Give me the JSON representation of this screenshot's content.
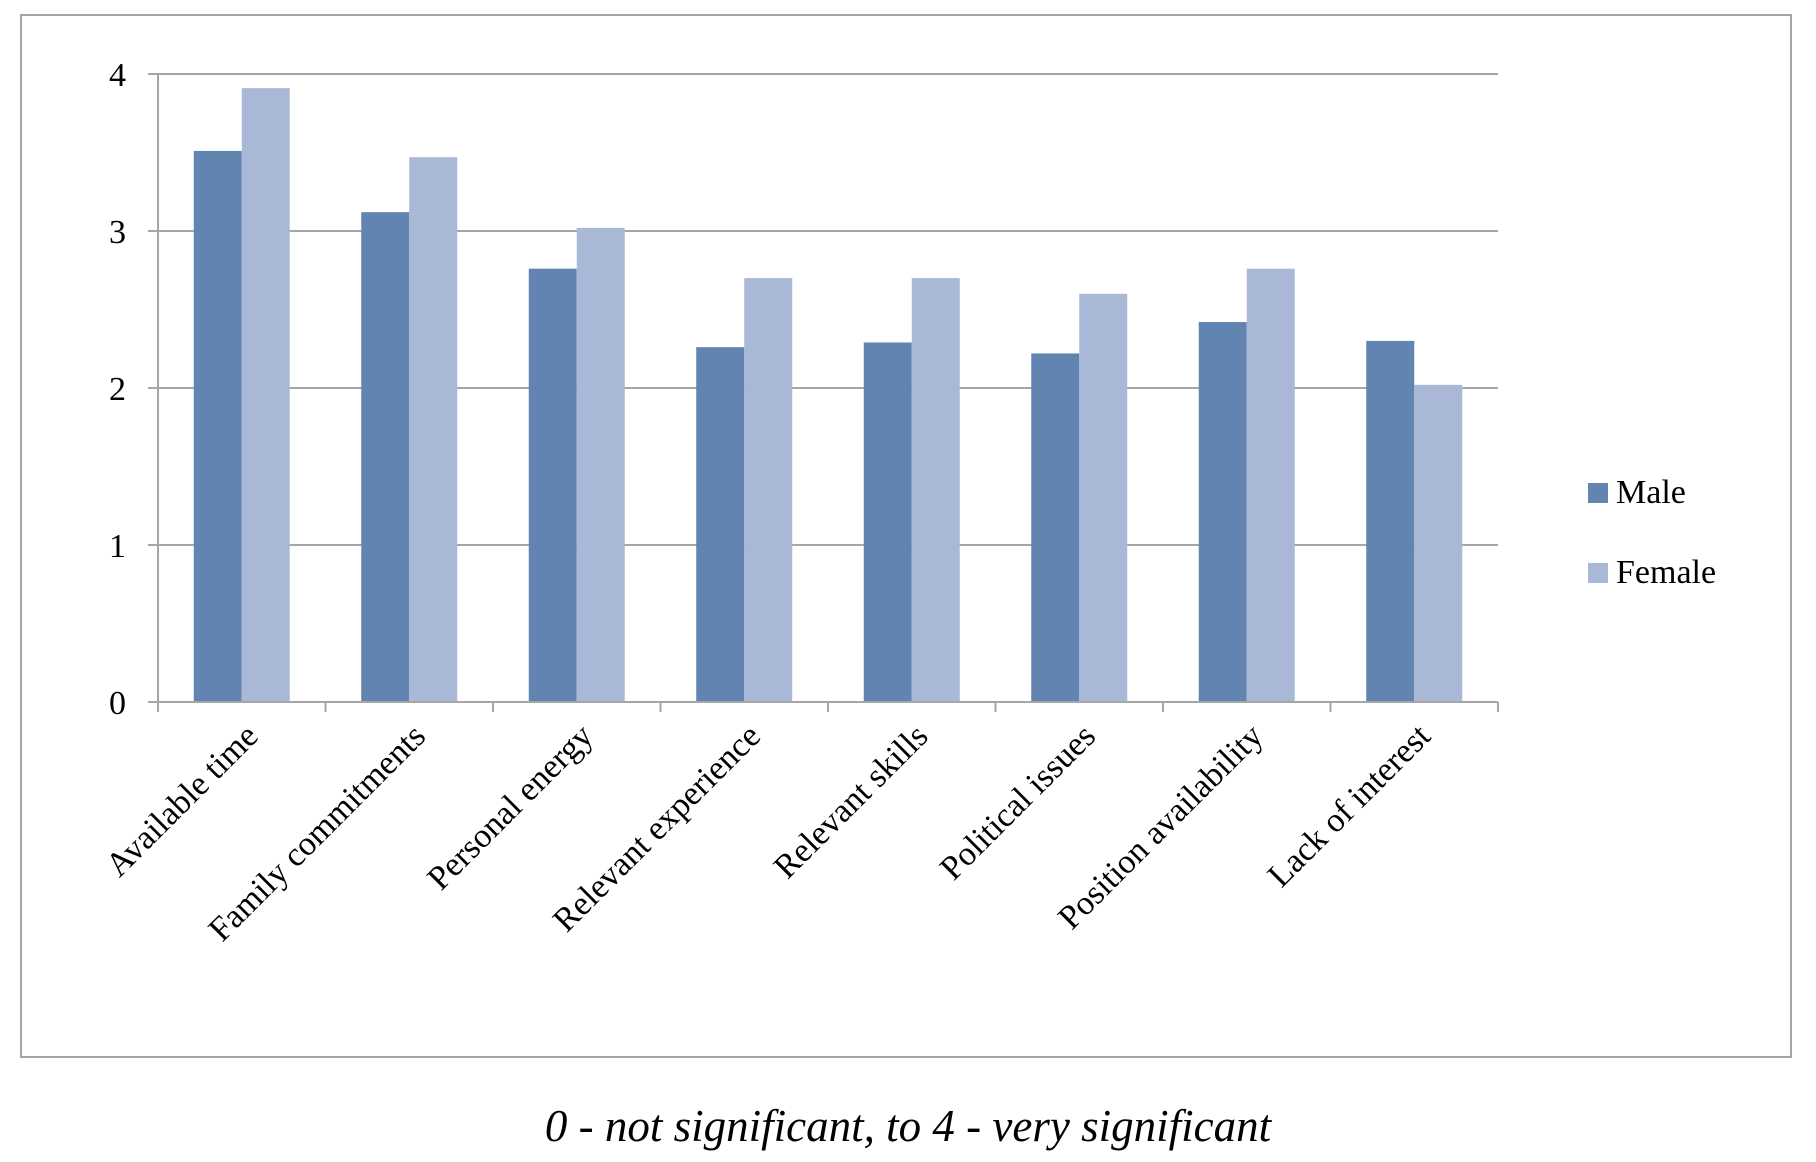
{
  "chart_data": {
    "type": "bar",
    "categories": [
      "Available time",
      "Family commitments",
      "Personal energy",
      "Relevant experience",
      "Relevant skills",
      "Political issues",
      "Position availability",
      "Lack of interest"
    ],
    "series": [
      {
        "name": "Male",
        "color": "#6284b1",
        "values": [
          3.51,
          3.12,
          2.76,
          2.26,
          2.29,
          2.22,
          2.42,
          2.3
        ]
      },
      {
        "name": "Female",
        "color": "#a8b8d6",
        "values": [
          3.91,
          3.47,
          3.02,
          2.7,
          2.7,
          2.6,
          2.76,
          2.02
        ]
      }
    ],
    "yticks": [
      "0",
      "1",
      "2",
      "3",
      "4"
    ],
    "ylim": [
      0,
      4
    ],
    "grid": true,
    "legend_position": "right"
  },
  "footnote": "0 - not significant, to 4 - very significant"
}
